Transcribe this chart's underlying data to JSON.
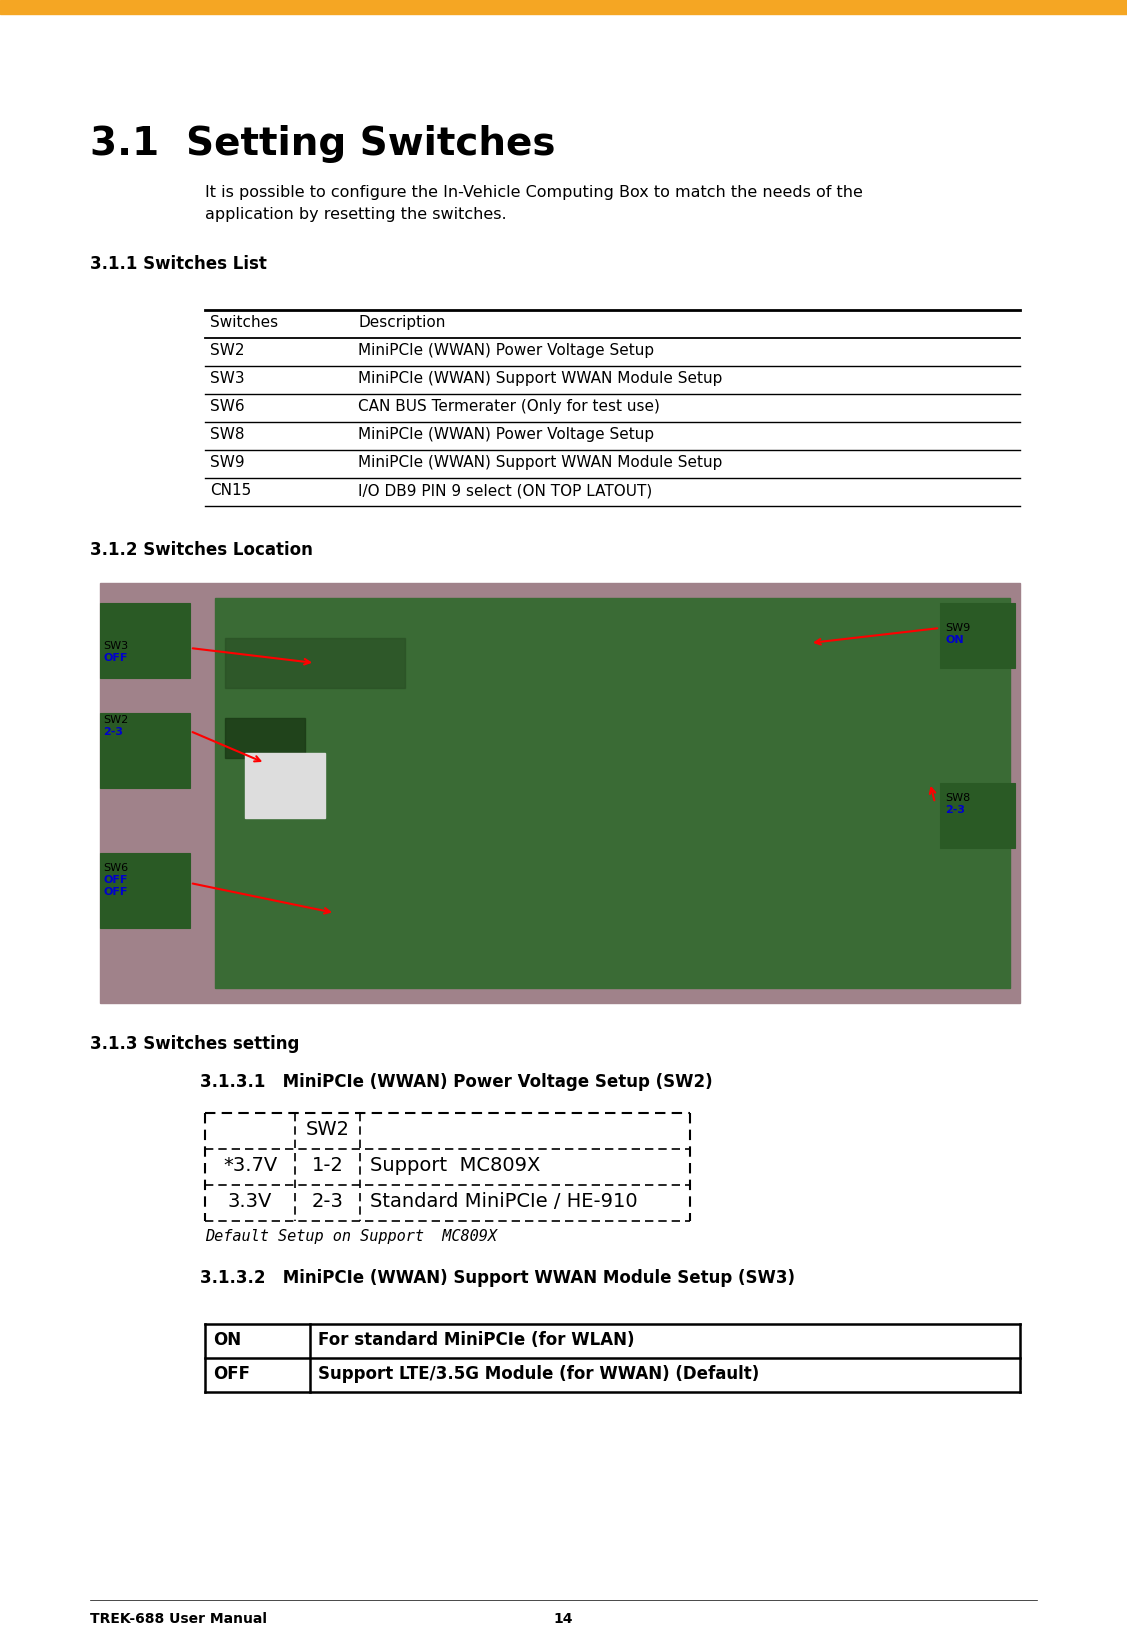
{
  "page_title": "3.1  Setting Switches",
  "orange_bar_color": "#F5A623",
  "section_title_color": "#000000",
  "body_text_color": "#000000",
  "bg_color": "#FFFFFF",
  "intro_line1": "It is possible to configure the In-Vehicle Computing Box to match the needs of the",
  "intro_line2": "application by resetting the switches.",
  "section311_title": "3.1.1 Switches List",
  "switches_table_headers": [
    "Switches",
    "Description"
  ],
  "switches_table_rows": [
    [
      "SW2",
      "MiniPCIe (WWAN) Power Voltage Setup"
    ],
    [
      "SW3",
      "MiniPCIe (WWAN) Support WWAN Module Setup"
    ],
    [
      "SW6",
      "CAN BUS Termerater (Only for test use)"
    ],
    [
      "SW8",
      "MiniPCIe (WWAN) Power Voltage Setup"
    ],
    [
      "SW9",
      "MiniPCIe (WWAN) Support WWAN Module Setup"
    ],
    [
      "CN15",
      "I/O DB9 PIN 9 select (ON TOP LATOUT)"
    ]
  ],
  "section312_title": "3.1.2 Switches Location",
  "section313_title": "3.1.3 Switches setting",
  "section3131_title": "3.1.3.1   MiniPCIe (WWAN) Power Voltage Setup (SW2)",
  "sw2_table_header": "SW2",
  "sw2_table_rows": [
    [
      "*3.7V",
      "1-2",
      "Support  MC809X"
    ],
    [
      "3.3V",
      "2-3",
      "Standard MiniPCIe / HE-910"
    ]
  ],
  "sw2_caption": "Default Setup on Support  MC809X",
  "section3132_title": "3.1.3.2   MiniPCIe (WWAN) Support WWAN Module Setup (SW3)",
  "sw3_table_rows": [
    [
      "ON",
      "For standard MiniPCIe (for WLAN)"
    ],
    [
      "OFF",
      "Support LTE/3.5G Module (for WWAN) (Default)"
    ]
  ],
  "footer_left": "TREK-688 User Manual",
  "footer_center": "14",
  "img_bg_color": "#8B7355",
  "img_pcb_color": "#3A6B35",
  "img_label_color": "#0000CC"
}
